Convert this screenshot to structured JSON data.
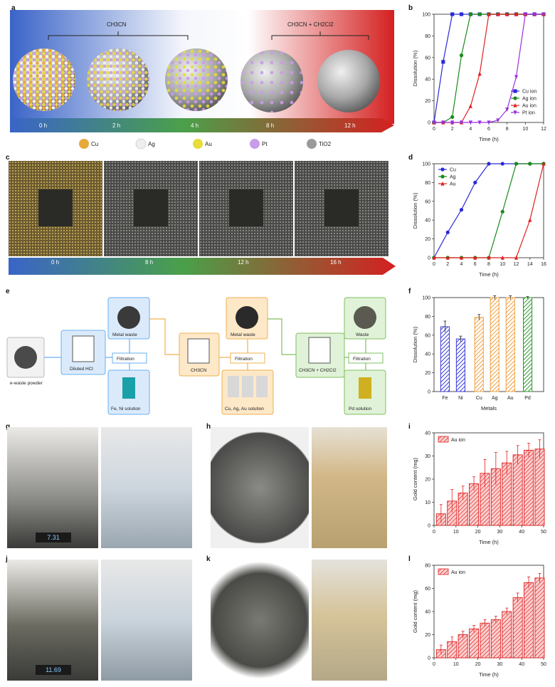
{
  "labels": {
    "a": "a",
    "b": "b",
    "c": "c",
    "d": "d",
    "e": "e",
    "f": "f",
    "g": "g",
    "h": "h",
    "i": "i",
    "j": "j",
    "k": "k",
    "l": "l"
  },
  "panel_a": {
    "group1": "CH3CN",
    "group2": "CH3CN + CH2Cl2",
    "times": [
      "0 h",
      "2 h",
      "4 h",
      "8 h",
      "12 h"
    ],
    "legend": [
      {
        "name": "Cu",
        "color": "#e8a93a"
      },
      {
        "name": "Ag",
        "color": "#eeeeee"
      },
      {
        "name": "Au",
        "color": "#e6dc3a"
      },
      {
        "name": "Pt",
        "color": "#c89ce8"
      },
      {
        "name": "TiO2",
        "color": "#9a9a9a"
      }
    ]
  },
  "panel_c": {
    "times": [
      "0 h",
      "8 h",
      "12 h",
      "16 h"
    ]
  },
  "panel_e": {
    "ewaste": "e-waste powder",
    "hcl": "Diluted HCl",
    "filtration": "Filtration",
    "metal_waste": "Metal waste",
    "fe_ni": "Fe, Ni solution",
    "ch3cn": "CH3CN",
    "cu_ag_au": "Cu, Ag, Au solution",
    "mix": "CH3CN + CH2Cl2",
    "waste": "Waste",
    "pd": "Pd solution"
  },
  "panel_g": {
    "scale_reading": "7.31"
  },
  "panel_j": {
    "scale_reading": "11.69"
  },
  "chart_data": [
    {
      "id": "b",
      "type": "line",
      "xlabel": "Time (h)",
      "ylabel": "Dissolution (%)",
      "xlim": [
        0,
        12
      ],
      "ylim": [
        0,
        100
      ],
      "xticks": [
        0,
        2,
        4,
        6,
        8,
        10,
        12
      ],
      "yticks": [
        0,
        20,
        40,
        60,
        80,
        100
      ],
      "legend_position": "bottom-right",
      "series": [
        {
          "name": "Cu ion",
          "color": "#2a2ad8",
          "marker": "square",
          "x": [
            0,
            1,
            2,
            3,
            4,
            5,
            6,
            7,
            8,
            9,
            10,
            11,
            12
          ],
          "y": [
            0,
            56,
            100,
            100,
            100,
            100,
            100,
            100,
            100,
            100,
            100,
            100,
            100
          ]
        },
        {
          "name": "Ag ion",
          "color": "#1a8a1a",
          "marker": "circle",
          "x": [
            0,
            1,
            2,
            3,
            4,
            5,
            6,
            7,
            8,
            9,
            10,
            11,
            12
          ],
          "y": [
            0,
            0,
            5,
            62,
            100,
            100,
            100,
            100,
            100,
            100,
            100,
            100,
            100
          ]
        },
        {
          "name": "Au ion",
          "color": "#e02020",
          "marker": "triangle",
          "x": [
            0,
            1,
            2,
            3,
            4,
            5,
            6,
            7,
            8,
            9,
            10,
            11,
            12
          ],
          "y": [
            0,
            0,
            0,
            0,
            15,
            45,
            100,
            100,
            100,
            100,
            100,
            100,
            100
          ]
        },
        {
          "name": "Pt ion",
          "color": "#9a30e0",
          "marker": "triangle-down",
          "x": [
            0,
            1,
            2,
            3,
            4,
            5,
            6,
            7,
            8,
            9,
            10,
            11,
            12
          ],
          "y": [
            0,
            0,
            0,
            0,
            0,
            0,
            0,
            2,
            12,
            42,
            100,
            100,
            100
          ]
        }
      ]
    },
    {
      "id": "d",
      "type": "line",
      "xlabel": "Time (h)",
      "ylabel": "Dissolution (%)",
      "xlim": [
        0,
        16
      ],
      "ylim": [
        0,
        100
      ],
      "xticks": [
        0,
        2,
        4,
        6,
        8,
        10,
        12,
        14,
        16
      ],
      "yticks": [
        0,
        20,
        40,
        60,
        80,
        100
      ],
      "legend_position": "top-left",
      "series": [
        {
          "name": "Cu",
          "color": "#2a2ad8",
          "marker": "circle",
          "x": [
            0,
            2,
            4,
            6,
            8,
            10,
            12,
            14,
            16
          ],
          "y": [
            0,
            27,
            51,
            80,
            100,
            100,
            100,
            100,
            100
          ]
        },
        {
          "name": "Ag",
          "color": "#1a8a1a",
          "marker": "circle",
          "x": [
            0,
            2,
            4,
            6,
            8,
            10,
            12,
            14,
            16
          ],
          "y": [
            0,
            0,
            0,
            0,
            0,
            49,
            100,
            100,
            100
          ]
        },
        {
          "name": "Au",
          "color": "#e02020",
          "marker": "triangle",
          "x": [
            0,
            2,
            4,
            6,
            8,
            10,
            12,
            14,
            16
          ],
          "y": [
            0,
            0,
            0,
            0,
            0,
            0,
            0,
            40,
            100
          ]
        }
      ]
    },
    {
      "id": "f",
      "type": "bar",
      "xlabel": "Metals",
      "ylabel": "Dissolution (%)",
      "ylim": [
        0,
        100
      ],
      "yticks": [
        0,
        20,
        40,
        60,
        80,
        100
      ],
      "categories": [
        "Fe",
        "Ni",
        "Cu",
        "Ag",
        "Au",
        "Pd"
      ],
      "values": [
        69,
        56,
        79,
        100,
        100,
        100
      ],
      "errors": [
        6,
        3,
        3,
        2,
        2,
        1
      ],
      "colors": [
        "#3a3ad8",
        "#3a3ad8",
        "#f0a040",
        "#f0a040",
        "#f0a040",
        "#2a9a2a"
      ]
    },
    {
      "id": "i",
      "type": "bar",
      "xlabel": "Time (h)",
      "ylabel": "Gold content (mg)",
      "xlim": [
        0,
        50
      ],
      "ylim": [
        0,
        40
      ],
      "xticks": [
        0,
        10,
        20,
        30,
        40,
        50
      ],
      "yticks": [
        0,
        10,
        20,
        30,
        40
      ],
      "legend_position": "top-left",
      "series": [
        {
          "name": "Au ion",
          "color": "#e02020",
          "x": [
            5,
            10,
            15,
            20,
            25,
            30,
            35,
            40,
            45,
            50
          ],
          "y": [
            5,
            10.5,
            14,
            18,
            22.5,
            24.5,
            27,
            30.5,
            32.5,
            33
          ],
          "errors": [
            4,
            5,
            3,
            3,
            6,
            7,
            5,
            4,
            3,
            4
          ]
        }
      ]
    },
    {
      "id": "l",
      "type": "bar",
      "xlabel": "Time (h)",
      "ylabel": "Gold content (mg)",
      "xlim": [
        0,
        50
      ],
      "ylim": [
        0,
        80
      ],
      "xticks": [
        0,
        10,
        20,
        30,
        40,
        50
      ],
      "yticks": [
        0,
        20,
        40,
        60,
        80
      ],
      "legend_position": "top-left",
      "series": [
        {
          "name": "Au ion",
          "color": "#e02020",
          "x": [
            5,
            10,
            15,
            20,
            25,
            30,
            35,
            40,
            45,
            50
          ],
          "y": [
            7,
            14,
            20,
            25,
            30,
            33,
            40,
            52,
            65,
            69
          ],
          "errors": [
            4,
            4,
            3,
            3,
            3,
            3,
            3,
            4,
            5,
            4
          ]
        }
      ]
    }
  ]
}
